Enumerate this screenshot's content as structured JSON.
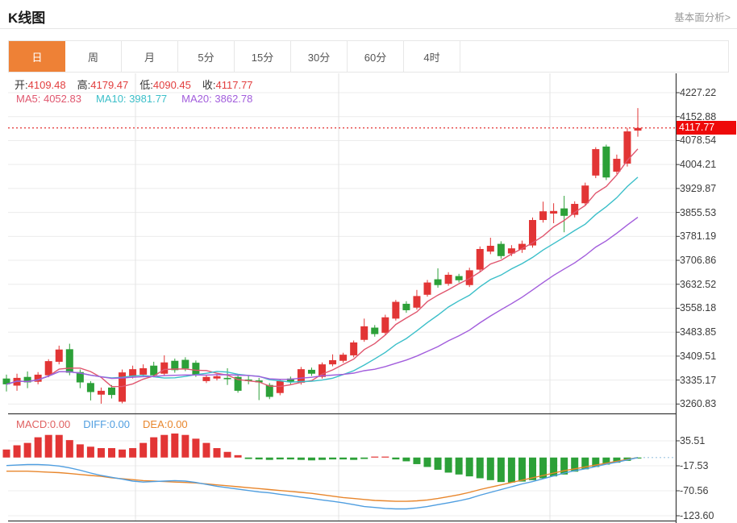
{
  "header": {
    "title": "K线图",
    "link": "基本面分析>"
  },
  "tabs": {
    "items": [
      "日",
      "周",
      "月",
      "5分",
      "15分",
      "30分",
      "60分",
      "4时"
    ],
    "selected_index": 0
  },
  "ohlc": {
    "open_label": "开:",
    "open": "4109.48",
    "high_label": "高:",
    "high": "4179.47",
    "low_label": "低:",
    "low": "4090.45",
    "close_label": "收:",
    "close": "4117.77"
  },
  "ma": {
    "ma5_label": "MA5:",
    "ma5": "4052.83",
    "ma10_label": "MA10:",
    "ma10": "3981.77",
    "ma20_label": "MA20:",
    "ma20": "3862.78"
  },
  "macd_header": {
    "macd_label": "MACD:",
    "macd": "0.00",
    "diff_label": "DIFF:",
    "diff": "0.00",
    "dea_label": "DEA:",
    "dea": "0.00"
  },
  "price_marker": {
    "value": "4117.77"
  },
  "colors": {
    "up": "#e23535",
    "down": "#2ca038",
    "ma5": "#e0566e",
    "ma10": "#3bbfc9",
    "ma20": "#a25ddc",
    "diff_line": "#4f9ee0",
    "dea_line": "#e8862c",
    "tab_selected": "#ee8136",
    "badge": "#ee0a0a",
    "value_red": "#e23e3e",
    "macd_label_red": "#e06060",
    "grid": "#ececec",
    "vgrid": "#e3e3e3",
    "axis": "#3a3a3a",
    "dotted_price": "#e43030",
    "zero_dotted": "#a9cce4"
  },
  "chart_data": {
    "type": "candlestick+macd",
    "title": "K线图 日线",
    "legend": [
      "MA5",
      "MA10",
      "MA20",
      "MACD",
      "DIFF",
      "DEA"
    ],
    "main": {
      "y_axis_labels": [
        "4227.22",
        "4152.88",
        "4078.54",
        "4004.21",
        "3929.87",
        "3855.53",
        "3781.19",
        "3706.86",
        "3632.52",
        "3558.18",
        "3483.85",
        "3409.51",
        "3335.17",
        "3260.83"
      ],
      "y_top_value": 4227.22,
      "y_step_value": 74.335,
      "last_price": 4117.77,
      "ma_periods": [
        5,
        10,
        20
      ],
      "candles_ochl": [
        [
          3340,
          3322,
          3352,
          3300
        ],
        [
          3318,
          3342,
          3355,
          3302
        ],
        [
          3345,
          3328,
          3362,
          3310
        ],
        [
          3330,
          3352,
          3360,
          3322
        ],
        [
          3350,
          3394,
          3400,
          3344
        ],
        [
          3392,
          3430,
          3442,
          3384
        ],
        [
          3431,
          3358,
          3448,
          3350
        ],
        [
          3360,
          3328,
          3368,
          3310
        ],
        [
          3326,
          3298,
          3332,
          3272
        ],
        [
          3290,
          3302,
          3312,
          3262
        ],
        [
          3312,
          3289,
          3320,
          3278
        ],
        [
          3268,
          3359,
          3368,
          3263
        ],
        [
          3346,
          3369,
          3380,
          3340
        ],
        [
          3352,
          3372,
          3384,
          3346
        ],
        [
          3380,
          3350,
          3392,
          3344
        ],
        [
          3355,
          3390,
          3412,
          3348
        ],
        [
          3395,
          3366,
          3402,
          3358
        ],
        [
          3398,
          3371,
          3406,
          3363
        ],
        [
          3389,
          3352,
          3396,
          3345
        ],
        [
          3332,
          3345,
          3352,
          3326
        ],
        [
          3340,
          3347,
          3354,
          3334
        ],
        [
          3342,
          3338,
          3372,
          3320
        ],
        [
          3345,
          3302,
          3352,
          3296
        ],
        [
          3337,
          3332,
          3348,
          3322
        ],
        [
          3334,
          3328,
          3342,
          3273
        ],
        [
          3320,
          3283,
          3326,
          3276
        ],
        [
          3295,
          3332,
          3338,
          3288
        ],
        [
          3340,
          3329,
          3346,
          3322
        ],
        [
          3327,
          3369,
          3376,
          3321
        ],
        [
          3367,
          3355,
          3374,
          3348
        ],
        [
          3345,
          3384,
          3390,
          3340
        ],
        [
          3384,
          3397,
          3415,
          3378
        ],
        [
          3395,
          3414,
          3420,
          3389
        ],
        [
          3412,
          3452,
          3458,
          3406
        ],
        [
          3460,
          3502,
          3526,
          3454
        ],
        [
          3498,
          3478,
          3506,
          3470
        ],
        [
          3482,
          3530,
          3538,
          3476
        ],
        [
          3526,
          3578,
          3584,
          3520
        ],
        [
          3572,
          3552,
          3580,
          3544
        ],
        [
          3560,
          3596,
          3615,
          3554
        ],
        [
          3600,
          3638,
          3646,
          3594
        ],
        [
          3648,
          3630,
          3682,
          3622
        ],
        [
          3634,
          3662,
          3670,
          3628
        ],
        [
          3658,
          3645,
          3665,
          3638
        ],
        [
          3630,
          3676,
          3684,
          3624
        ],
        [
          3678,
          3742,
          3750,
          3670
        ],
        [
          3734,
          3752,
          3777,
          3726
        ],
        [
          3758,
          3720,
          3766,
          3712
        ],
        [
          3728,
          3744,
          3754,
          3720
        ],
        [
          3740,
          3758,
          3768,
          3730
        ],
        [
          3753,
          3832,
          3840,
          3746
        ],
        [
          3832,
          3859,
          3889,
          3824
        ],
        [
          3852,
          3860,
          3884,
          3822
        ],
        [
          3868,
          3845,
          3907,
          3794
        ],
        [
          3848,
          3882,
          3890,
          3840
        ],
        [
          3884,
          3939,
          3948,
          3878
        ],
        [
          3970,
          4052,
          4058,
          3962
        ],
        [
          4060,
          3964,
          4066,
          3956
        ],
        [
          3982,
          4022,
          4035,
          3975
        ],
        [
          4007,
          4107,
          4118,
          3998
        ],
        [
          4109.48,
          4117.77,
          4179.47,
          4090.45
        ]
      ]
    },
    "macd": {
      "y_axis_labels": [
        "35.51",
        "-17.53",
        "-70.56",
        "-123.60"
      ],
      "y_top_value": 35.51,
      "y_step_value": 53.03,
      "hist": [
        17,
        26,
        31,
        43,
        48,
        48,
        37,
        28,
        23,
        20,
        20,
        17,
        20,
        31,
        43,
        48,
        51,
        48,
        40,
        31,
        20,
        12,
        5,
        -3,
        -4,
        -5,
        -4,
        -4,
        -5,
        -6,
        -5,
        -4,
        -4,
        -5,
        -3,
        2,
        2,
        -4,
        -8,
        -14,
        -20,
        -26,
        -32,
        -36,
        -40,
        -44,
        -48,
        -52,
        -53,
        -51,
        -48,
        -44,
        -40,
        -36,
        -30,
        -25,
        -20,
        -15,
        -11,
        -7,
        -2
      ],
      "diff": [
        -17,
        -16,
        -15,
        -15,
        -16,
        -18,
        -22,
        -27,
        -33,
        -38,
        -42,
        -46,
        -50,
        -52,
        -51,
        -50,
        -49,
        -50,
        -53,
        -57,
        -61,
        -64,
        -67,
        -70,
        -73,
        -75,
        -78,
        -81,
        -84,
        -87,
        -90,
        -93,
        -96,
        -100,
        -104,
        -106,
        -108,
        -109,
        -109,
        -107,
        -104,
        -100,
        -96,
        -92,
        -87,
        -80,
        -74,
        -68,
        -62,
        -56,
        -51,
        -45,
        -39,
        -33,
        -28,
        -24,
        -19,
        -14,
        -10,
        -5,
        0
      ],
      "dea": [
        -29,
        -29,
        -29,
        -30,
        -31,
        -32,
        -34,
        -36,
        -38,
        -40,
        -43,
        -45,
        -47,
        -49,
        -50,
        -51,
        -52,
        -53,
        -54,
        -56,
        -58,
        -60,
        -62,
        -64,
        -66,
        -68,
        -70,
        -72,
        -74,
        -76,
        -79,
        -82,
        -85,
        -87,
        -89,
        -91,
        -92,
        -93,
        -93,
        -92,
        -90,
        -87,
        -83,
        -79,
        -74,
        -68,
        -63,
        -58,
        -53,
        -48,
        -43,
        -38,
        -33,
        -28,
        -24,
        -20,
        -16,
        -12,
        -8,
        -4,
        0
      ]
    }
  }
}
